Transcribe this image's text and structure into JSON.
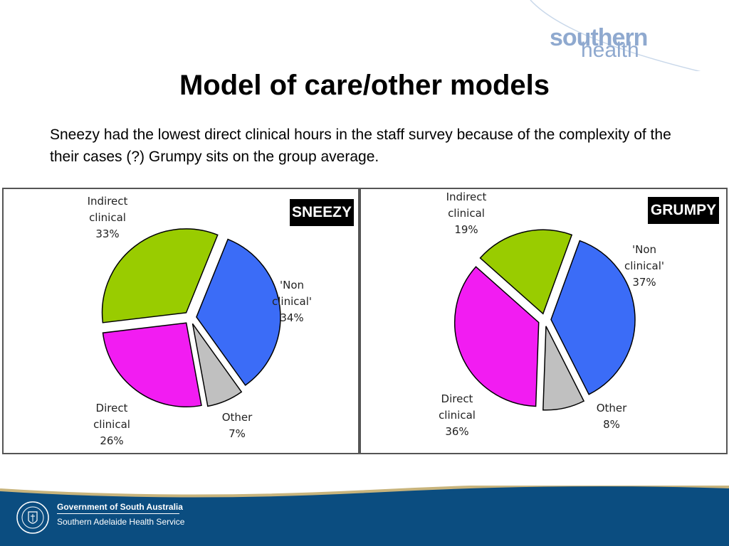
{
  "logo": {
    "line1": "southern",
    "line2": "health"
  },
  "title": "Model of care/other models",
  "body_text": "Sneezy had the lowest direct clinical hours in the staff survey because of the complexity of the their cases (?) Grumpy sits on the group average.",
  "footer": {
    "line1": "Government of South Australia",
    "line2": "Southern Adelaide Health Service"
  },
  "colors": {
    "non_clinical": "#3b6cf7",
    "other": "#c0c0c0",
    "direct_clinical": "#f21cf2",
    "indirect_clinical": "#99cc00",
    "footer_blue": "#0b4d80",
    "footer_gold": "#c8b47c"
  },
  "chart_data": [
    {
      "type": "pie",
      "title": "SNEEZY",
      "slices": [
        {
          "label": "'Non clinical'",
          "value": 34,
          "display": "34%",
          "color": "#3b6cf7"
        },
        {
          "label": "Other",
          "value": 7,
          "display": "7%",
          "color": "#c0c0c0"
        },
        {
          "label": "Direct clinical",
          "value": 26,
          "display": "26%",
          "color": "#f21cf2"
        },
        {
          "label": "Indirect clinical",
          "value": 33,
          "display": "33%",
          "color": "#99cc00"
        }
      ]
    },
    {
      "type": "pie",
      "title": "GRUMPY",
      "slices": [
        {
          "label": "'Non clinical'",
          "value": 37,
          "display": "37%",
          "color": "#3b6cf7"
        },
        {
          "label": "Other",
          "value": 8,
          "display": "8%",
          "color": "#c0c0c0"
        },
        {
          "label": "Direct clinical",
          "value": 36,
          "display": "36%",
          "color": "#f21cf2"
        },
        {
          "label": "Indirect clinical",
          "value": 19,
          "display": "19%",
          "color": "#99cc00"
        }
      ]
    }
  ],
  "labels": {
    "sneezy": {
      "indirect": [
        "Indirect",
        "clinical",
        "33%"
      ],
      "nonclinical": [
        "'Non",
        "clinical'",
        "34%"
      ],
      "direct": [
        "Direct",
        "clinical",
        "26%"
      ],
      "other": [
        "Other",
        "7%"
      ]
    },
    "grumpy": {
      "indirect": [
        "Indirect",
        "clinical",
        "19%"
      ],
      "nonclinical": [
        "'Non",
        "clinical'",
        "37%"
      ],
      "direct": [
        "Direct",
        "clinical",
        "36%"
      ],
      "other": [
        "Other",
        "8%"
      ]
    }
  }
}
